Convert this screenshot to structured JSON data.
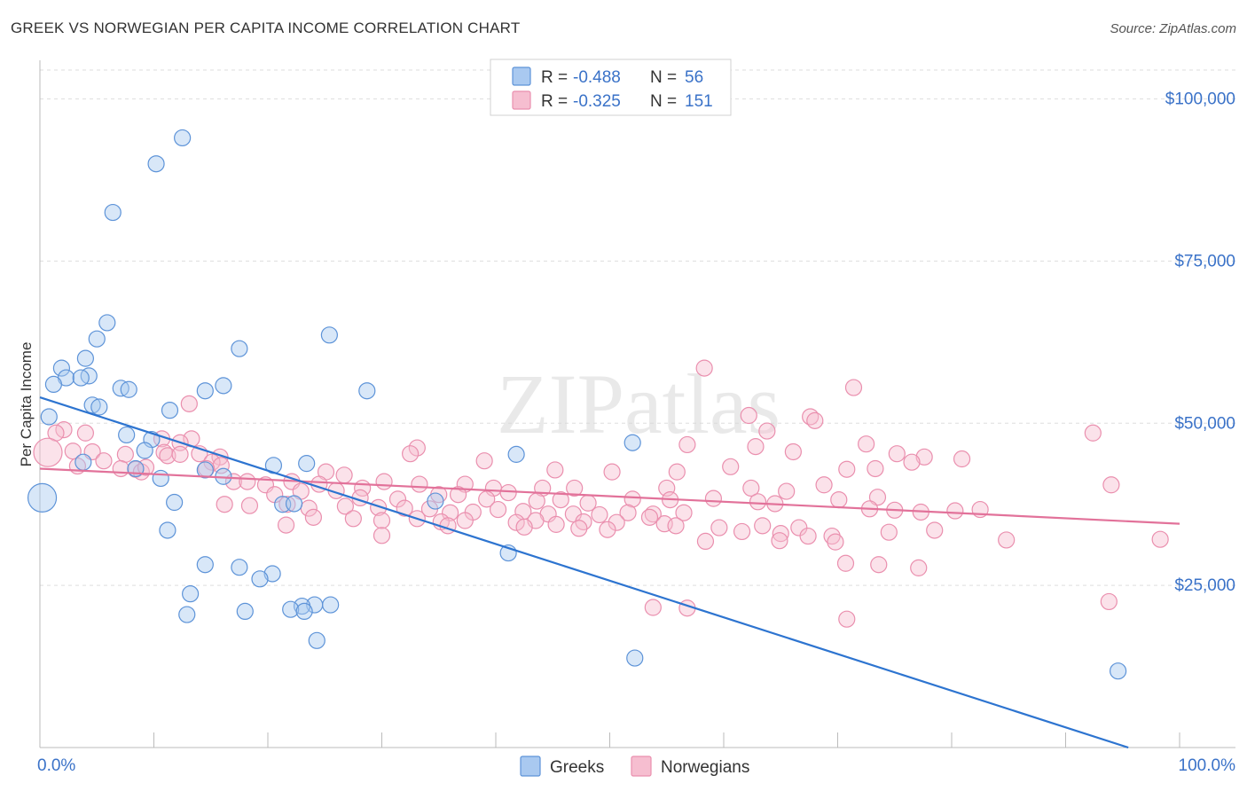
{
  "chart_data": {
    "type": "scatter",
    "title": "GREEK VS NORWEGIAN PER CAPITA INCOME CORRELATION CHART",
    "source": "Source: ZipAtlas.com",
    "ylabel": "Per Capita Income",
    "xlabel": "",
    "xlim": [
      0,
      100
    ],
    "ylim": [
      0,
      105000
    ],
    "x_tick_labels": [
      "0.0%",
      "100.0%"
    ],
    "y_ticks": [
      25000,
      50000,
      75000,
      100000
    ],
    "y_tick_labels": [
      "$25,000",
      "$50,000",
      "$75,000",
      "$100,000"
    ],
    "watermark": "ZIPatlas",
    "legend": [
      {
        "name": "Greeks",
        "r_label": "R =",
        "r_value": "-0.488",
        "n_label": "N =",
        "n_value": "56"
      },
      {
        "name": "Norwegians",
        "r_label": "R =",
        "r_value": "-0.325",
        "n_label": "N =",
        "n_value": "151"
      }
    ],
    "colors": {
      "greek_fill": "#a9c9f0",
      "greek_stroke": "#5d93d8",
      "greek_line": "#2d74d0",
      "nor_fill": "#f6bed0",
      "nor_stroke": "#ea8fae",
      "nor_line": "#e2729a",
      "accent_text": "#3a72c8",
      "grid": "#dddddd"
    },
    "series": [
      {
        "name": "Greeks",
        "trend": {
          "x": [
            0,
            95.5
          ],
          "y": [
            54000,
            0
          ]
        },
        "points": [
          [
            12.5,
            94000
          ],
          [
            10.2,
            90000
          ],
          [
            6.4,
            82500
          ],
          [
            5.9,
            65500
          ],
          [
            25.4,
            63600
          ],
          [
            5.0,
            63000
          ],
          [
            17.5,
            61500
          ],
          [
            4.0,
            60000
          ],
          [
            1.9,
            58500
          ],
          [
            4.3,
            57300
          ],
          [
            2.3,
            57000
          ],
          [
            3.6,
            57000
          ],
          [
            1.2,
            56000
          ],
          [
            16.1,
            55800
          ],
          [
            7.1,
            55400
          ],
          [
            7.8,
            55200
          ],
          [
            14.5,
            55000
          ],
          [
            28.7,
            55000
          ],
          [
            4.6,
            52800
          ],
          [
            5.2,
            52500
          ],
          [
            11.4,
            52000
          ],
          [
            0.8,
            51000
          ],
          [
            7.6,
            48200
          ],
          [
            9.8,
            47500
          ],
          [
            52.0,
            47000
          ],
          [
            9.2,
            45800
          ],
          [
            41.8,
            45200
          ],
          [
            3.8,
            44000
          ],
          [
            23.4,
            43800
          ],
          [
            20.5,
            43500
          ],
          [
            8.4,
            43000
          ],
          [
            14.5,
            42800
          ],
          [
            16.1,
            41800
          ],
          [
            10.6,
            41500
          ],
          [
            0.2,
            38500
          ],
          [
            34.7,
            38000
          ],
          [
            11.8,
            37800
          ],
          [
            21.3,
            37500
          ],
          [
            22.3,
            37600
          ],
          [
            11.2,
            33500
          ],
          [
            41.1,
            30000
          ],
          [
            14.5,
            28200
          ],
          [
            17.5,
            27800
          ],
          [
            20.4,
            26800
          ],
          [
            19.3,
            26000
          ],
          [
            13.2,
            23700
          ],
          [
            24.1,
            22000
          ],
          [
            25.5,
            22000
          ],
          [
            23.0,
            21800
          ],
          [
            22.0,
            21300
          ],
          [
            23.2,
            21000
          ],
          [
            18.0,
            21000
          ],
          [
            12.9,
            20500
          ],
          [
            24.3,
            16500
          ],
          [
            52.2,
            13800
          ],
          [
            94.6,
            11800
          ]
        ]
      },
      {
        "name": "Norwegians",
        "trend": {
          "x": [
            0,
            100
          ],
          "y": [
            43000,
            34500
          ]
        },
        "points": [
          [
            58.3,
            58500
          ],
          [
            67.6,
            51000
          ],
          [
            71.4,
            55500
          ],
          [
            62.2,
            51200
          ],
          [
            63.8,
            48800
          ],
          [
            68.0,
            50400
          ],
          [
            13.1,
            53000
          ],
          [
            92.4,
            48500
          ],
          [
            2.1,
            49000
          ],
          [
            4.0,
            48500
          ],
          [
            1.4,
            48500
          ],
          [
            10.7,
            47600
          ],
          [
            13.3,
            47600
          ],
          [
            12.3,
            47000
          ],
          [
            33.1,
            46200
          ],
          [
            56.8,
            46700
          ],
          [
            62.8,
            46400
          ],
          [
            72.5,
            46800
          ],
          [
            0.7,
            45500
          ],
          [
            2.9,
            45700
          ],
          [
            4.6,
            45600
          ],
          [
            7.5,
            45200
          ],
          [
            10.9,
            45500
          ],
          [
            11.2,
            45000
          ],
          [
            12.3,
            45200
          ],
          [
            14.0,
            45300
          ],
          [
            15.8,
            44800
          ],
          [
            32.5,
            45300
          ],
          [
            66.1,
            45600
          ],
          [
            75.2,
            45300
          ],
          [
            77.6,
            44800
          ],
          [
            39.0,
            44200
          ],
          [
            5.6,
            44200
          ],
          [
            15.1,
            44000
          ],
          [
            15.9,
            43500
          ],
          [
            3.3,
            43400
          ],
          [
            7.1,
            43000
          ],
          [
            8.4,
            42900
          ],
          [
            8.9,
            42500
          ],
          [
            9.3,
            43200
          ],
          [
            14.6,
            43000
          ],
          [
            25.1,
            42500
          ],
          [
            26.7,
            42000
          ],
          [
            45.2,
            42800
          ],
          [
            50.2,
            42500
          ],
          [
            55.9,
            42500
          ],
          [
            60.6,
            43300
          ],
          [
            70.8,
            42900
          ],
          [
            73.3,
            43000
          ],
          [
            76.5,
            44000
          ],
          [
            80.9,
            44500
          ],
          [
            17.0,
            41000
          ],
          [
            18.2,
            41000
          ],
          [
            19.8,
            40500
          ],
          [
            22.1,
            41000
          ],
          [
            24.5,
            40600
          ],
          [
            28.3,
            40000
          ],
          [
            30.2,
            41000
          ],
          [
            33.3,
            40600
          ],
          [
            37.3,
            40600
          ],
          [
            39.8,
            40000
          ],
          [
            44.1,
            40000
          ],
          [
            46.9,
            40000
          ],
          [
            55.0,
            40000
          ],
          [
            62.4,
            40000
          ],
          [
            65.5,
            39500
          ],
          [
            68.8,
            40500
          ],
          [
            94.0,
            40500
          ],
          [
            20.6,
            39000
          ],
          [
            22.9,
            39500
          ],
          [
            26.0,
            39600
          ],
          [
            28.1,
            38500
          ],
          [
            31.4,
            38300
          ],
          [
            35.0,
            39000
          ],
          [
            36.7,
            39000
          ],
          [
            39.2,
            38300
          ],
          [
            41.1,
            39300
          ],
          [
            43.6,
            38000
          ],
          [
            45.7,
            38200
          ],
          [
            48.1,
            37700
          ],
          [
            52.0,
            38300
          ],
          [
            55.3,
            38200
          ],
          [
            59.1,
            38400
          ],
          [
            63.0,
            37900
          ],
          [
            64.5,
            37600
          ],
          [
            70.1,
            38200
          ],
          [
            73.5,
            38600
          ],
          [
            16.2,
            37500
          ],
          [
            18.4,
            37300
          ],
          [
            21.7,
            37500
          ],
          [
            23.6,
            36900
          ],
          [
            26.8,
            37200
          ],
          [
            29.7,
            37000
          ],
          [
            32.0,
            36900
          ],
          [
            34.2,
            36800
          ],
          [
            36.0,
            36200
          ],
          [
            38.0,
            36300
          ],
          [
            40.2,
            36700
          ],
          [
            42.4,
            36400
          ],
          [
            44.6,
            36000
          ],
          [
            46.8,
            36000
          ],
          [
            49.1,
            35900
          ],
          [
            51.6,
            36200
          ],
          [
            53.8,
            36000
          ],
          [
            56.5,
            36200
          ],
          [
            72.8,
            36800
          ],
          [
            75.0,
            36600
          ],
          [
            77.3,
            36300
          ],
          [
            80.3,
            36500
          ],
          [
            82.5,
            36700
          ],
          [
            24.0,
            35500
          ],
          [
            27.5,
            35300
          ],
          [
            30.0,
            35000
          ],
          [
            33.1,
            35300
          ],
          [
            35.2,
            34800
          ],
          [
            37.3,
            35000
          ],
          [
            41.8,
            34700
          ],
          [
            43.5,
            35000
          ],
          [
            45.3,
            34400
          ],
          [
            47.7,
            34800
          ],
          [
            50.6,
            34700
          ],
          [
            53.5,
            35500
          ],
          [
            54.8,
            34500
          ],
          [
            55.8,
            34200
          ],
          [
            59.6,
            33900
          ],
          [
            63.4,
            34200
          ],
          [
            66.6,
            33900
          ],
          [
            21.6,
            34300
          ],
          [
            35.8,
            34200
          ],
          [
            42.5,
            34000
          ],
          [
            47.3,
            33800
          ],
          [
            49.8,
            33600
          ],
          [
            61.6,
            33300
          ],
          [
            65.0,
            33000
          ],
          [
            67.4,
            32600
          ],
          [
            69.5,
            32600
          ],
          [
            74.5,
            33200
          ],
          [
            78.5,
            33500
          ],
          [
            84.8,
            32000
          ],
          [
            98.3,
            32100
          ],
          [
            30.0,
            32700
          ],
          [
            58.4,
            31800
          ],
          [
            64.9,
            31900
          ],
          [
            69.8,
            31700
          ],
          [
            70.7,
            28400
          ],
          [
            73.6,
            28200
          ],
          [
            77.1,
            27700
          ],
          [
            56.8,
            21500
          ],
          [
            53.8,
            21600
          ],
          [
            70.8,
            19800
          ],
          [
            93.8,
            22500
          ]
        ]
      }
    ]
  }
}
